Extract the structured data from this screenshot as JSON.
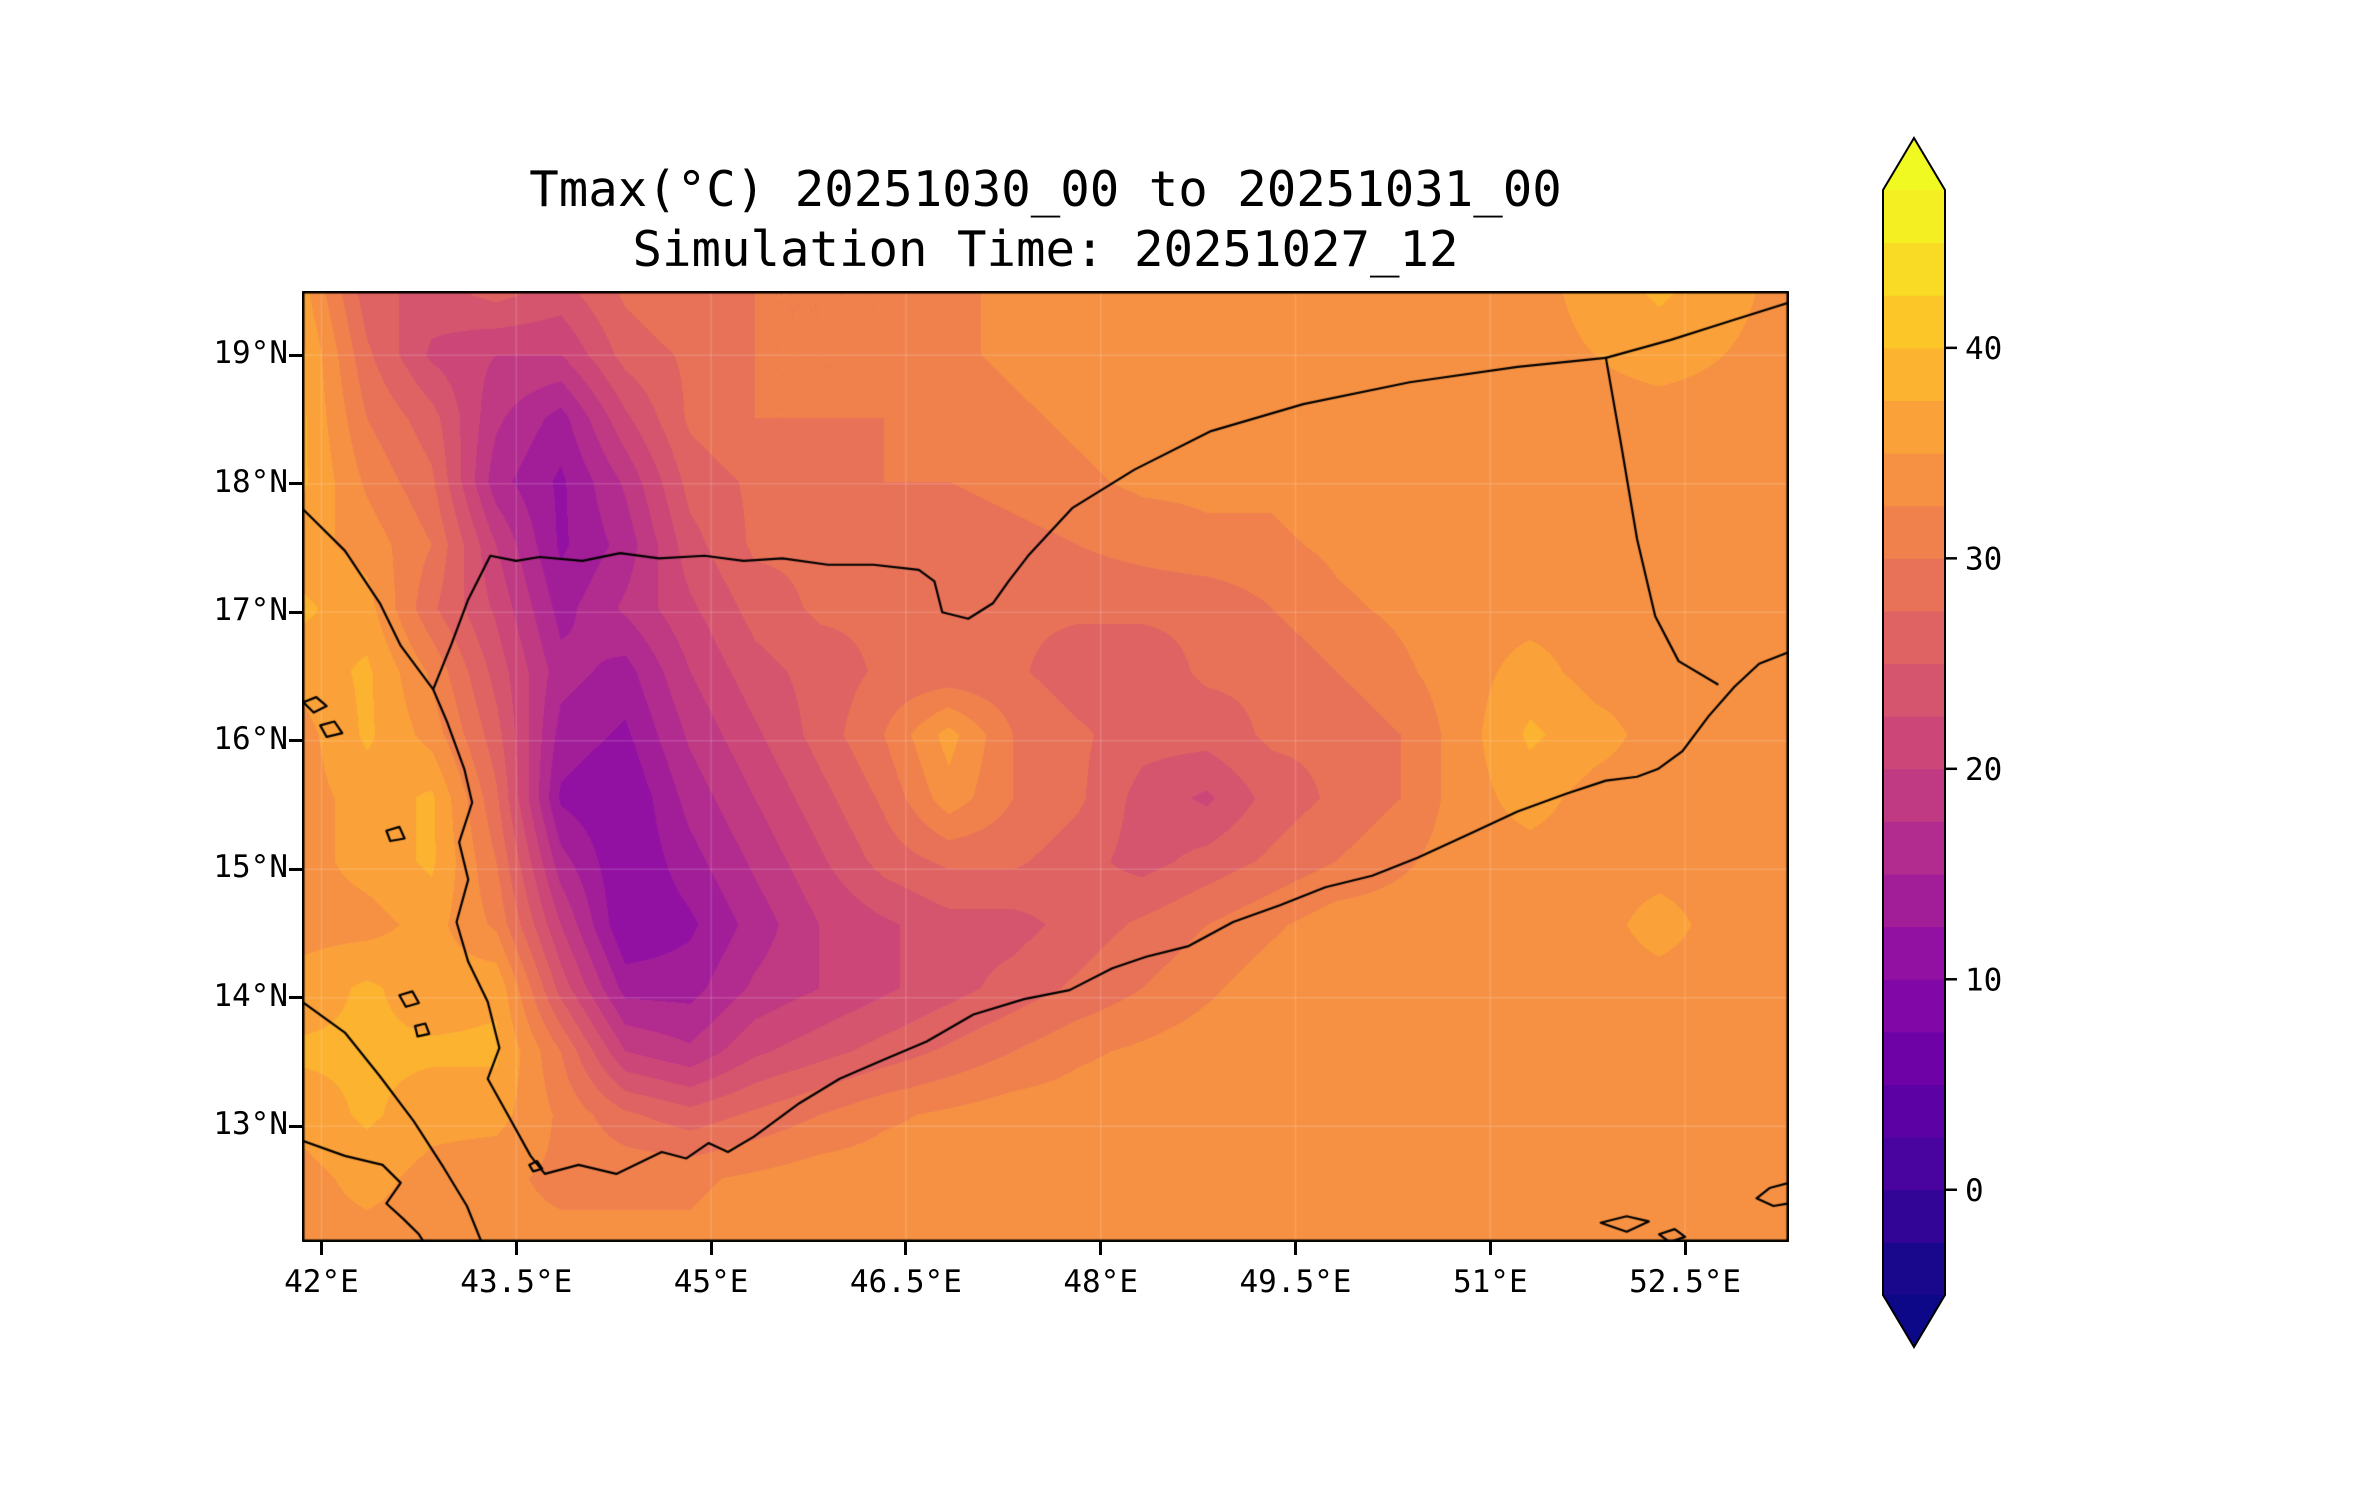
{
  "title": "Tmax(°C) 20251030_00 to 20251031_00",
  "subtitle": "Simulation Time: 20251027_12",
  "axes": {
    "x_ticks": [
      {
        "lon": 42.0,
        "label": "42°E"
      },
      {
        "lon": 43.5,
        "label": "43.5°E"
      },
      {
        "lon": 45.0,
        "label": "45°E"
      },
      {
        "lon": 46.5,
        "label": "46.5°E"
      },
      {
        "lon": 48.0,
        "label": "48°E"
      },
      {
        "lon": 49.5,
        "label": "49.5°E"
      },
      {
        "lon": 51.0,
        "label": "51°E"
      },
      {
        "lon": 52.5,
        "label": "52.5°E"
      }
    ],
    "y_ticks": [
      {
        "lat": 13.0,
        "label": "13°N"
      },
      {
        "lat": 14.0,
        "label": "14°N"
      },
      {
        "lat": 15.0,
        "label": "15°N"
      },
      {
        "lat": 16.0,
        "label": "16°N"
      },
      {
        "lat": 17.0,
        "label": "17°N"
      },
      {
        "lat": 18.0,
        "label": "18°N"
      },
      {
        "lat": 19.0,
        "label": "19°N"
      }
    ]
  },
  "colorbar": {
    "ticks": [
      {
        "value": 0,
        "label": "0"
      },
      {
        "value": 10,
        "label": "10"
      },
      {
        "value": 20,
        "label": "20"
      },
      {
        "value": 30,
        "label": "30"
      },
      {
        "value": 40,
        "label": "40"
      }
    ],
    "extend": "both",
    "colormap_name": "plasma",
    "colormap_stops": [
      {
        "t": 0.0,
        "color": "#0d0887"
      },
      {
        "t": 0.1,
        "color": "#41049d"
      },
      {
        "t": 0.2,
        "color": "#6a00a8"
      },
      {
        "t": 0.3,
        "color": "#8f0da4"
      },
      {
        "t": 0.4,
        "color": "#b12a90"
      },
      {
        "t": 0.5,
        "color": "#cc4778"
      },
      {
        "t": 0.6,
        "color": "#e16462"
      },
      {
        "t": 0.7,
        "color": "#f2844b"
      },
      {
        "t": 0.8,
        "color": "#fca636"
      },
      {
        "t": 0.9,
        "color": "#fcce25"
      },
      {
        "t": 1.0,
        "color": "#f0f921"
      }
    ],
    "border_color": "#000000"
  },
  "chart_data": {
    "type": "heatmap",
    "title": "Tmax(°C) 20251030_00 to 20251031_00",
    "subtitle": "Simulation Time: 20251027_12",
    "variable": "Tmax",
    "units": "°C",
    "lon_range": [
      41.85,
      53.3
    ],
    "lat_range": [
      12.1,
      19.5
    ],
    "levels_min": -5,
    "levels_max": 47.5,
    "levels_step": 2.5,
    "colorbar_ticks": [
      0,
      10,
      20,
      30,
      40
    ],
    "grid_note": "rows top-to-bottom from lat 19.5 to 12.1, cols left-to-right from lon 41.85 to 53.3, values are Tmax in °C estimated from the plotted field",
    "values": [
      [
        36,
        26,
        24,
        26,
        24,
        28,
        30,
        30,
        30,
        30,
        32,
        33,
        34,
        34,
        34,
        34,
        34,
        34,
        34,
        34,
        36,
        38,
        36,
        34
      ],
      [
        38,
        28,
        22,
        20,
        20,
        26,
        28,
        30,
        30,
        30,
        32,
        33,
        34,
        34,
        34,
        34,
        34,
        34,
        34,
        34,
        35,
        36,
        35,
        34
      ],
      [
        38,
        30,
        26,
        18,
        14,
        22,
        28,
        30,
        30,
        30,
        31,
        32,
        33,
        34,
        34,
        34,
        34,
        34,
        34,
        34,
        34,
        34,
        34,
        34
      ],
      [
        38,
        32,
        28,
        16,
        12,
        18,
        26,
        28,
        29,
        30,
        30,
        31,
        32,
        33,
        33,
        33,
        34,
        34,
        34,
        34,
        34,
        34,
        34,
        34
      ],
      [
        36,
        34,
        30,
        20,
        12,
        16,
        24,
        28,
        28,
        28,
        28,
        29,
        30,
        31,
        32,
        32,
        33,
        34,
        34,
        34,
        34,
        34,
        34,
        34
      ],
      [
        38,
        36,
        28,
        22,
        14,
        18,
        22,
        26,
        28,
        28,
        28,
        28,
        28,
        28,
        28,
        30,
        32,
        33,
        34,
        34,
        34,
        34,
        34,
        34
      ],
      [
        36,
        38,
        32,
        24,
        16,
        14,
        20,
        24,
        26,
        28,
        28,
        28,
        26,
        26,
        28,
        28,
        30,
        32,
        34,
        36,
        34,
        34,
        34,
        34
      ],
      [
        34,
        38,
        34,
        26,
        14,
        12,
        18,
        22,
        26,
        30,
        36,
        30,
        28,
        26,
        26,
        28,
        28,
        30,
        34,
        38,
        36,
        34,
        34,
        34
      ],
      [
        34,
        36,
        38,
        28,
        12,
        10,
        16,
        20,
        24,
        28,
        34,
        30,
        28,
        24,
        22,
        26,
        28,
        30,
        34,
        36,
        34,
        34,
        34,
        34
      ],
      [
        34,
        36,
        38,
        30,
        16,
        10,
        14,
        18,
        22,
        26,
        28,
        28,
        26,
        24,
        26,
        28,
        30,
        32,
        34,
        34,
        34,
        34,
        34,
        34
      ],
      [
        34,
        34,
        36,
        32,
        20,
        10,
        12,
        16,
        20,
        22,
        24,
        24,
        26,
        28,
        30,
        32,
        34,
        34,
        34,
        34,
        34,
        36,
        34,
        34
      ],
      [
        36,
        38,
        36,
        37,
        24,
        14,
        14,
        18,
        20,
        22,
        24,
        26,
        28,
        30,
        32,
        34,
        34,
        34,
        34,
        34,
        34,
        34,
        34,
        34
      ],
      [
        38,
        38,
        38,
        38,
        30,
        20,
        18,
        22,
        24,
        26,
        28,
        30,
        32,
        33,
        34,
        34,
        34,
        34,
        34,
        34,
        34,
        34,
        34,
        34
      ],
      [
        36,
        38,
        36,
        36,
        32,
        28,
        26,
        28,
        30,
        32,
        33,
        34,
        34,
        34,
        34,
        34,
        34,
        34,
        34,
        34,
        34,
        34,
        34,
        34
      ],
      [
        34,
        36,
        34,
        33,
        32,
        32,
        32,
        33,
        34,
        34,
        34,
        34,
        34,
        34,
        34,
        34,
        34,
        34,
        34,
        34,
        34,
        34,
        35,
        34
      ],
      [
        34,
        34,
        34,
        33,
        33,
        33,
        33,
        34,
        34,
        34,
        34,
        34,
        34,
        34,
        34,
        34,
        34,
        34,
        34,
        34,
        34,
        34,
        35,
        34
      ]
    ],
    "borders": [
      {
        "name": "red-sea-gulf-of-aden-coastline",
        "closed": false,
        "points": [
          [
            41.85,
            17.81
          ],
          [
            42.18,
            17.48
          ],
          [
            42.45,
            17.07
          ],
          [
            42.61,
            16.74
          ],
          [
            42.86,
            16.4
          ],
          [
            42.97,
            16.14
          ],
          [
            43.1,
            15.78
          ],
          [
            43.16,
            15.52
          ],
          [
            43.06,
            15.21
          ],
          [
            43.13,
            14.92
          ],
          [
            43.04,
            14.59
          ],
          [
            43.13,
            14.28
          ],
          [
            43.28,
            13.97
          ],
          [
            43.37,
            13.61
          ],
          [
            43.28,
            13.37
          ],
          [
            43.44,
            13.08
          ],
          [
            43.61,
            12.77
          ],
          [
            43.72,
            12.63
          ],
          [
            43.98,
            12.7
          ],
          [
            44.27,
            12.63
          ],
          [
            44.62,
            12.8
          ],
          [
            44.81,
            12.75
          ],
          [
            44.98,
            12.87
          ],
          [
            45.13,
            12.8
          ],
          [
            45.33,
            12.92
          ],
          [
            45.68,
            13.18
          ],
          [
            45.99,
            13.37
          ],
          [
            46.31,
            13.51
          ],
          [
            46.66,
            13.66
          ],
          [
            47.02,
            13.87
          ],
          [
            47.41,
            13.99
          ],
          [
            47.76,
            14.06
          ],
          [
            48.09,
            14.23
          ],
          [
            48.35,
            14.32
          ],
          [
            48.67,
            14.4
          ],
          [
            49.02,
            14.59
          ],
          [
            49.38,
            14.72
          ],
          [
            49.73,
            14.86
          ],
          [
            50.09,
            14.95
          ],
          [
            50.44,
            15.09
          ],
          [
            50.83,
            15.27
          ],
          [
            51.21,
            15.45
          ],
          [
            51.59,
            15.59
          ],
          [
            51.89,
            15.69
          ],
          [
            52.13,
            15.72
          ],
          [
            52.29,
            15.78
          ],
          [
            52.48,
            15.92
          ],
          [
            52.68,
            16.19
          ],
          [
            52.88,
            16.42
          ],
          [
            53.07,
            16.6
          ],
          [
            53.3,
            16.69
          ]
        ]
      },
      {
        "name": "yemen-saudi-border",
        "closed": false,
        "points": [
          [
            42.86,
            16.4
          ],
          [
            43.0,
            16.75
          ],
          [
            43.13,
            17.1
          ],
          [
            43.3,
            17.44
          ],
          [
            43.5,
            17.4
          ],
          [
            43.68,
            17.43
          ],
          [
            44.01,
            17.4
          ],
          [
            44.3,
            17.46
          ],
          [
            44.6,
            17.42
          ],
          [
            44.95,
            17.44
          ],
          [
            45.25,
            17.4
          ],
          [
            45.55,
            17.42
          ],
          [
            45.9,
            17.37
          ],
          [
            46.25,
            17.37
          ],
          [
            46.6,
            17.33
          ],
          [
            46.72,
            17.24
          ],
          [
            46.78,
            17.0
          ],
          [
            46.98,
            16.95
          ],
          [
            47.17,
            17.07
          ],
          [
            47.29,
            17.24
          ],
          [
            47.45,
            17.45
          ],
          [
            47.78,
            17.81
          ],
          [
            48.26,
            18.11
          ],
          [
            48.85,
            18.41
          ],
          [
            49.56,
            18.62
          ],
          [
            50.38,
            18.79
          ],
          [
            51.21,
            18.91
          ],
          [
            51.89,
            18.98
          ]
        ]
      },
      {
        "name": "saudi-oman-border",
        "closed": false,
        "points": [
          [
            51.89,
            18.98
          ],
          [
            52.39,
            19.12
          ],
          [
            52.86,
            19.27
          ],
          [
            53.3,
            19.41
          ]
        ]
      },
      {
        "name": "yemen-oman-border",
        "closed": false,
        "points": [
          [
            51.89,
            18.98
          ],
          [
            52.01,
            18.29
          ],
          [
            52.13,
            17.57
          ],
          [
            52.27,
            16.97
          ],
          [
            52.45,
            16.62
          ],
          [
            52.75,
            16.44
          ]
        ]
      },
      {
        "name": "african-coastline",
        "closed": false,
        "points": [
          [
            41.85,
            13.97
          ],
          [
            42.18,
            13.73
          ],
          [
            42.45,
            13.39
          ],
          [
            42.71,
            13.04
          ],
          [
            42.94,
            12.68
          ],
          [
            43.12,
            12.38
          ],
          [
            43.24,
            12.08
          ]
        ]
      },
      {
        "name": "djibouti-coastline",
        "closed": false,
        "points": [
          [
            41.85,
            12.89
          ],
          [
            42.18,
            12.77
          ],
          [
            42.47,
            12.7
          ],
          [
            42.61,
            12.56
          ],
          [
            42.5,
            12.4
          ],
          [
            42.63,
            12.28
          ],
          [
            42.75,
            12.16
          ],
          [
            42.8,
            12.08
          ]
        ]
      }
    ],
    "islands": [
      {
        "name": "farasan-island-1",
        "points": [
          [
            41.86,
            16.3
          ],
          [
            41.96,
            16.34
          ],
          [
            42.04,
            16.27
          ],
          [
            41.94,
            16.22
          ]
        ]
      },
      {
        "name": "farasan-island-2",
        "points": [
          [
            41.99,
            16.12
          ],
          [
            42.1,
            16.15
          ],
          [
            42.16,
            16.06
          ],
          [
            42.04,
            16.03
          ]
        ]
      },
      {
        "name": "kamaran-island",
        "points": [
          [
            42.5,
            15.3
          ],
          [
            42.6,
            15.33
          ],
          [
            42.64,
            15.24
          ],
          [
            42.53,
            15.22
          ]
        ]
      },
      {
        "name": "hanish-island-1",
        "points": [
          [
            42.6,
            14.02
          ],
          [
            42.7,
            14.05
          ],
          [
            42.75,
            13.96
          ],
          [
            42.65,
            13.93
          ]
        ]
      },
      {
        "name": "hanish-island-2",
        "points": [
          [
            42.72,
            13.78
          ],
          [
            42.8,
            13.8
          ],
          [
            42.83,
            13.72
          ],
          [
            42.74,
            13.7
          ]
        ]
      },
      {
        "name": "perim-island",
        "points": [
          [
            43.6,
            12.7
          ],
          [
            43.66,
            12.73
          ],
          [
            43.7,
            12.67
          ],
          [
            43.63,
            12.65
          ]
        ]
      },
      {
        "name": "abd-al-kuri-island",
        "points": [
          [
            51.85,
            12.25
          ],
          [
            52.05,
            12.3
          ],
          [
            52.22,
            12.26
          ],
          [
            52.05,
            12.18
          ]
        ]
      },
      {
        "name": "samhah-island",
        "points": [
          [
            52.3,
            12.16
          ],
          [
            52.42,
            12.2
          ],
          [
            52.5,
            12.14
          ],
          [
            52.38,
            12.1
          ]
        ]
      },
      {
        "name": "socotra-west-tip",
        "points": [
          [
            53.3,
            12.56
          ],
          [
            53.15,
            12.52
          ],
          [
            53.05,
            12.44
          ],
          [
            53.18,
            12.38
          ],
          [
            53.3,
            12.4
          ]
        ]
      }
    ],
    "legend_position": "right-colorbar",
    "grid": "faint graticule at tick positions"
  }
}
